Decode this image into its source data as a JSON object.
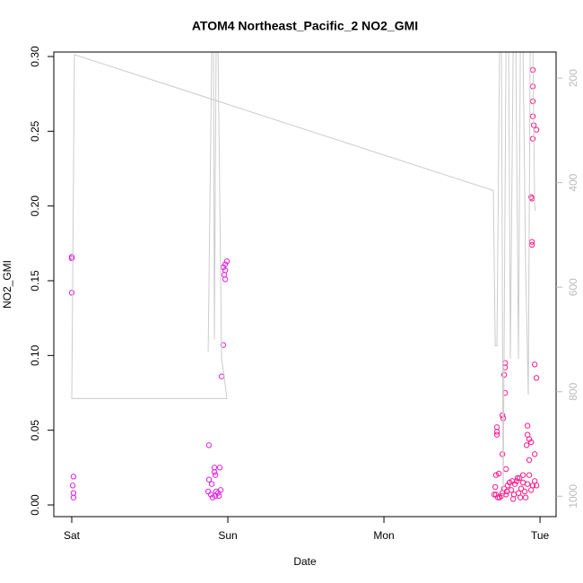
{
  "chart_data": {
    "type": "scatter",
    "title": "ATOM4 Northeast_Pacific_2 NO2_GMI",
    "xlabel": "Date",
    "ylabel": "NO2_GMI",
    "xlim": [
      -0.115,
      3.103
    ],
    "xticks": [
      {
        "value": 0,
        "label": "Sat"
      },
      {
        "value": 1,
        "label": "Sun"
      },
      {
        "value": 2,
        "label": "Mon"
      },
      {
        "value": 3,
        "label": "Tue"
      }
    ],
    "ylim": [
      -0.0078,
      0.303
    ],
    "yticks": [
      {
        "value": 0,
        "label": "0.00"
      },
      {
        "value": 0.05,
        "label": "0.05"
      },
      {
        "value": 0.1,
        "label": "0.10"
      },
      {
        "value": 0.15,
        "label": "0.15"
      },
      {
        "value": 0.2,
        "label": "0.20"
      },
      {
        "value": 0.25,
        "label": "0.25"
      },
      {
        "value": 0.3,
        "label": "0.30"
      }
    ],
    "y2lim": [
      1039,
      150
    ],
    "y2ticks": [
      200,
      400,
      600,
      800,
      1000
    ],
    "y2color": "#bbbbbb",
    "series": [
      {
        "color": "#e020e0",
        "x": [
          0,
          0,
          0,
          0.011,
          0.006,
          0.011,
          0.011,
          0.879,
          0.914,
          0.914,
          0.92,
          0.948,
          0.879,
          0.897,
          0.874,
          0.891,
          0.92,
          0.937,
          0.902,
          0.943,
          0.954,
          0.925,
          0.983,
          0.994,
          0.971,
          0.983,
          0.977,
          0.983,
          0.971,
          0.96
        ],
        "values": [
          0.166,
          0.165,
          0.142,
          0.019,
          0.013,
          0.008,
          0.005,
          0.04,
          0.025,
          0.022,
          0.02,
          0.025,
          0.017,
          0.014,
          0.009,
          0.007,
          0.006,
          0.008,
          0.005,
          0.006,
          0.01,
          0.009,
          0.161,
          0.163,
          0.159,
          0.157,
          0.154,
          0.151,
          0.107,
          0.086
        ]
      },
      {
        "color": "#ff1a8c",
        "x": [
          2.954,
          2.954,
          2.954,
          2.954,
          2.96,
          2.977,
          2.954,
          2.943,
          2.948,
          2.948,
          2.948,
          2.966,
          2.977,
          2.776,
          2.776,
          2.77,
          2.776,
          2.759,
          2.764,
          2.724,
          2.724,
          2.724,
          2.92,
          2.92,
          2.931,
          2.943,
          2.914,
          2.759,
          2.966,
          2.931,
          2.736,
          2.718,
          2.782,
          2.713,
          2.707,
          2.718,
          2.73,
          2.741,
          2.753,
          2.759,
          2.77,
          2.782,
          2.793,
          2.805,
          2.816,
          2.828,
          2.839,
          2.851,
          2.862,
          2.868,
          2.879,
          2.891,
          2.902,
          2.908,
          2.92,
          2.931,
          2.943,
          2.954,
          2.966,
          2.977,
          2.891,
          2.856,
          2.822,
          2.787,
          2.833,
          2.874
        ],
        "values": [
          0.291,
          0.28,
          0.27,
          0.26,
          0.254,
          0.251,
          0.245,
          0.206,
          0.205,
          0.176,
          0.174,
          0.094,
          0.085,
          0.095,
          0.092,
          0.087,
          0.075,
          0.06,
          0.058,
          0.052,
          0.049,
          0.047,
          0.053,
          0.047,
          0.044,
          0.042,
          0.04,
          0.034,
          0.034,
          0.03,
          0.021,
          0.02,
          0.024,
          0.012,
          0.007,
          0.007,
          0.005,
          0.005,
          0.006,
          0.008,
          0.011,
          0.007,
          0.013,
          0.015,
          0.01,
          0.004,
          0.014,
          0.016,
          0.008,
          0.018,
          0.011,
          0.015,
          0.009,
          0.005,
          0.014,
          0.02,
          0.01,
          0.013,
          0.016,
          0.013,
          0.02,
          0.018,
          0.016,
          0.009,
          0.007,
          0.005
        ]
      },
      {
        "color": "#cccccc",
        "axis": "y2",
        "x": [
          0.874,
          0.897,
          0.908,
          0.914,
          0.925,
          0.937,
          0.96,
          0.977,
          0.994,
          0,
          0.017,
          2.701,
          2.713,
          2.724,
          2.741,
          2.753,
          2.764,
          2.782,
          2.799,
          2.81,
          2.828,
          2.845,
          2.862,
          2.874,
          2.891,
          2.908,
          2.925,
          2.937,
          2.954,
          2.966,
          2.971
        ],
        "values": [
          724,
          140,
          140,
          700,
          140,
          140,
          737,
          772,
          813,
          813,
          155,
          415,
          712,
          712,
          140,
          140,
          1003,
          140,
          140,
          737,
          140,
          140,
          737,
          140,
          140,
          566,
          806,
          140,
          140,
          445,
          454
        ]
      }
    ]
  }
}
